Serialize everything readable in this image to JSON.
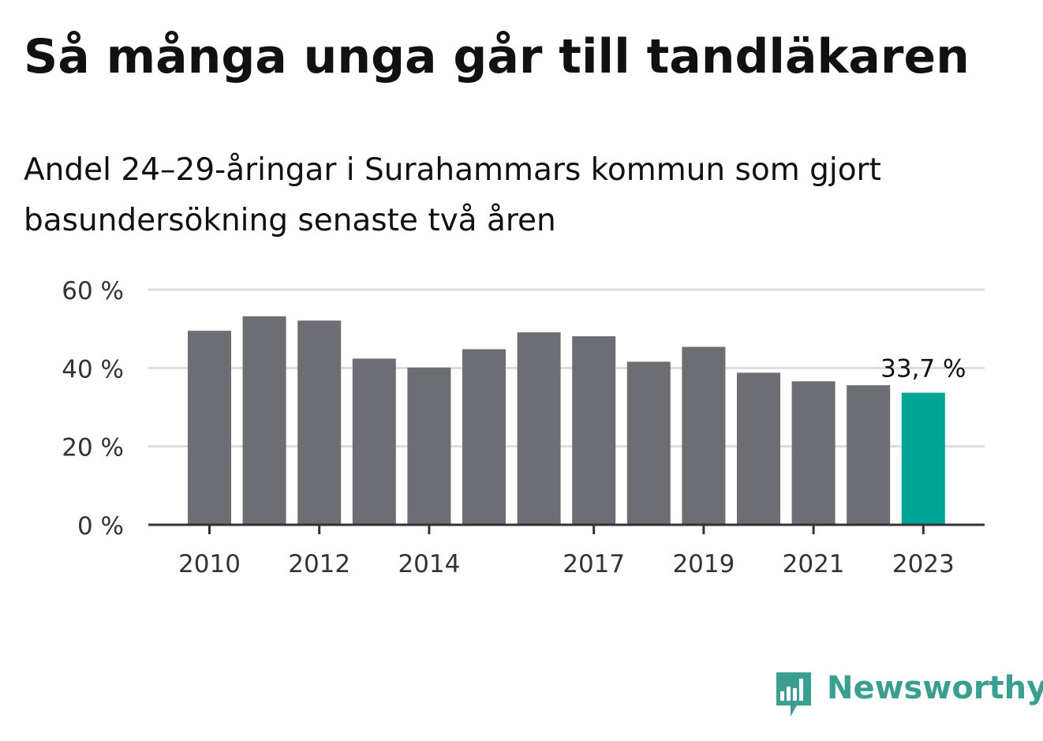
{
  "title": "Så många unga går till tandläkaren",
  "subtitle": "Andel 24–29-åringar i Surahammars kommun som gjort basundersökning senaste två åren",
  "brand": {
    "name": "Newsworthy",
    "color": "#3a9e91"
  },
  "colors": {
    "bar": "#6d6d74",
    "highlight": "#00a596",
    "grid": "#dcdcdc",
    "axis": "#333333"
  },
  "chart_data": {
    "type": "bar",
    "categories": [
      "2010",
      "2011",
      "2012",
      "2013",
      "2014",
      "2015",
      "2016",
      "2017",
      "2018",
      "2019",
      "2020",
      "2021",
      "2022",
      "2023"
    ],
    "values": [
      49.5,
      53.2,
      52.1,
      42.4,
      40.1,
      44.8,
      49.1,
      48.1,
      41.6,
      45.4,
      38.8,
      36.6,
      35.6,
      33.7
    ],
    "x_tick_labels": [
      "2010",
      "2012",
      "2014",
      "2017",
      "2019",
      "2021",
      "2023"
    ],
    "y_ticks": [
      0,
      20,
      40,
      60
    ],
    "y_tick_labels": [
      "0 %",
      "20 %",
      "40 %",
      "60 %"
    ],
    "ylim": [
      0,
      60
    ],
    "highlight_category": "2023",
    "annotations": [
      {
        "category": "2023",
        "text": "33,7 %"
      }
    ],
    "grid": true,
    "legend": false,
    "xlabel": "",
    "ylabel": ""
  }
}
